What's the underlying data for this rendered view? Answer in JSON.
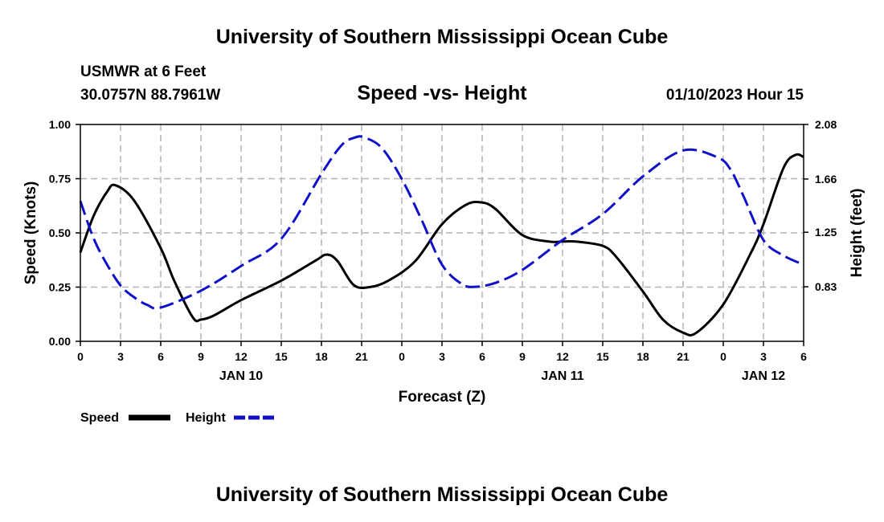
{
  "header": {
    "title": "University of Southern Mississippi Ocean Cube",
    "station": "USMWR at 6 Feet",
    "coords": "30.0757N  88.7961W",
    "chart_title": "Speed -vs- Height",
    "timestamp": "01/10/2023 Hour 15",
    "footer_title": "University of Southern Mississippi Ocean Cube"
  },
  "legend": {
    "speed_label": "Speed",
    "height_label": "Height"
  },
  "colors": {
    "speed": "#000000",
    "height": "#1010c8",
    "grid": "#b4b4b4"
  },
  "chart_data": {
    "type": "line",
    "title": "Speed -vs- Height",
    "xlabel": "Forecast (Z)",
    "ylabel": "Speed (Knots)",
    "y2label": "Height (feet)",
    "xlim": [
      0,
      54
    ],
    "ylim": [
      0,
      1
    ],
    "y2lim": [
      0.41,
      2.08
    ],
    "x_ticks": [
      0,
      3,
      6,
      9,
      12,
      15,
      18,
      21,
      24,
      27,
      30,
      33,
      36,
      39,
      42,
      45,
      48,
      51,
      54
    ],
    "x_tick_labels": [
      "0",
      "3",
      "6",
      "9",
      "12",
      "15",
      "18",
      "21",
      "0",
      "3",
      "6",
      "9",
      "12",
      "15",
      "18",
      "21",
      "0",
      "3",
      "6"
    ],
    "y_ticks": [
      0,
      0.25,
      0.5,
      0.75,
      1.0
    ],
    "y_tick_labels": [
      "0.00",
      "0.25",
      "0.50",
      "0.75",
      "1.00"
    ],
    "y2_ticks": [
      0.83,
      1.25,
      1.66,
      2.08
    ],
    "y2_tick_labels": [
      "0.83",
      "1.25",
      "1.66",
      "2.08"
    ],
    "date_labels": [
      {
        "x": 12,
        "label": "JAN 10"
      },
      {
        "x": 36,
        "label": "JAN 11"
      },
      {
        "x": 51,
        "label": "JAN 12"
      }
    ],
    "grid": true,
    "series": [
      {
        "name": "Speed",
        "axis": "left",
        "style": "solid",
        "x": [
          0,
          1,
          2,
          2.6,
          4,
          6,
          7,
          8.4,
          9,
          10,
          12,
          15,
          17.5,
          18.4,
          19.2,
          20.4,
          21.6,
          23,
          25,
          27,
          28.8,
          30,
          31,
          33,
          35,
          36,
          37,
          39,
          40,
          42,
          43.5,
          45,
          46,
          48,
          50,
          51,
          52.5,
          53.4,
          54
        ],
        "y": [
          0.41,
          0.58,
          0.69,
          0.72,
          0.65,
          0.43,
          0.28,
          0.11,
          0.1,
          0.12,
          0.19,
          0.28,
          0.37,
          0.4,
          0.37,
          0.26,
          0.25,
          0.28,
          0.37,
          0.54,
          0.63,
          0.64,
          0.61,
          0.49,
          0.46,
          0.46,
          0.46,
          0.44,
          0.39,
          0.23,
          0.1,
          0.04,
          0.04,
          0.17,
          0.4,
          0.54,
          0.8,
          0.86,
          0.85
        ]
      },
      {
        "name": "Height",
        "axis": "right",
        "style": "dashed",
        "x": [
          0,
          1,
          2,
          3,
          4,
          5,
          6,
          9,
          12,
          15,
          18,
          19.5,
          20.5,
          21.2,
          22.5,
          24,
          25.5,
          27,
          28.5,
          29.5,
          31,
          33,
          36,
          39,
          42,
          45,
          47.5,
          48.5,
          49.5,
          51,
          52.5,
          54
        ],
        "y": [
          1.49,
          1.2,
          1.0,
          0.84,
          0.75,
          0.69,
          0.67,
          0.8,
          0.99,
          1.2,
          1.7,
          1.92,
          1.98,
          1.98,
          1.9,
          1.66,
          1.34,
          1.0,
          0.85,
          0.83,
          0.86,
          0.96,
          1.19,
          1.39,
          1.68,
          1.88,
          1.83,
          1.74,
          1.53,
          1.19,
          1.07,
          1.0
        ]
      }
    ]
  }
}
